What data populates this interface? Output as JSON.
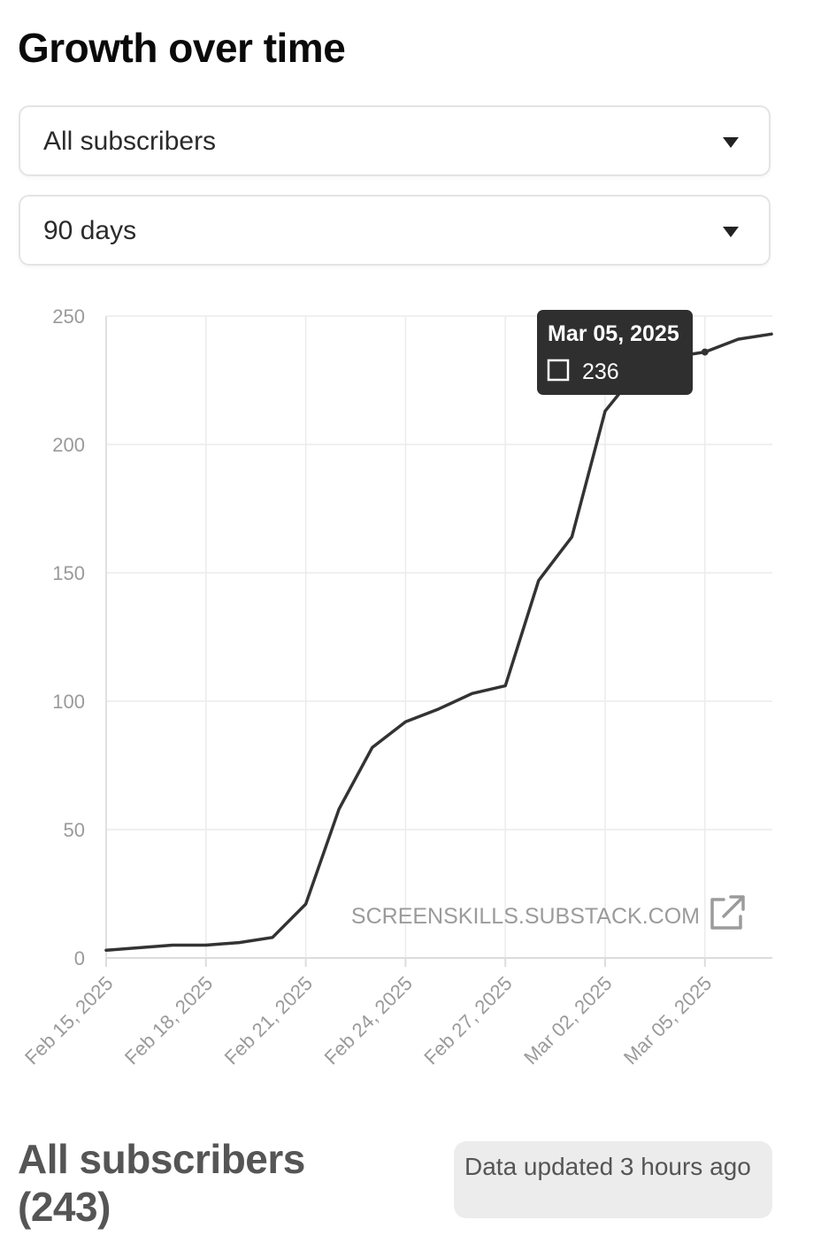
{
  "header": {
    "title": "Growth over time"
  },
  "filters": {
    "audience": "All subscribers",
    "range": "90 days"
  },
  "chart_data": {
    "type": "line",
    "x": [
      "2025-02-15",
      "2025-02-16",
      "2025-02-17",
      "2025-02-18",
      "2025-02-19",
      "2025-02-20",
      "2025-02-21",
      "2025-02-22",
      "2025-02-23",
      "2025-02-24",
      "2025-02-25",
      "2025-02-26",
      "2025-02-27",
      "2025-02-28",
      "2025-03-01",
      "2025-03-02",
      "2025-03-03",
      "2025-03-04",
      "2025-03-05",
      "2025-03-06",
      "2025-03-07"
    ],
    "series": [
      {
        "values": [
          3,
          4,
          5,
          5,
          6,
          8,
          21,
          58,
          82,
          92,
          97,
          103,
          106,
          147,
          164,
          213,
          229,
          234,
          236,
          241,
          243
        ]
      }
    ],
    "x_tick_labels": [
      "Feb 15, 2025",
      "Feb 18, 2025",
      "Feb 21, 2025",
      "Feb 24, 2025",
      "Feb 27, 2025",
      "Mar 02, 2025",
      "Mar 05, 2025"
    ],
    "x_tick_dates": [
      "2025-02-15",
      "2025-02-18",
      "2025-02-21",
      "2025-02-24",
      "2025-02-27",
      "2025-03-02",
      "2025-03-05"
    ],
    "y_ticks": [
      0,
      50,
      100,
      150,
      200,
      250
    ],
    "ylim": [
      0,
      250
    ],
    "grid": true,
    "line_color": "#333333",
    "tooltip": {
      "date_label": "Mar 05, 2025",
      "value": "236",
      "date": "2025-03-05"
    },
    "watermark": "SCREENSKILLS.SUBSTACK.COM"
  },
  "footer": {
    "summary_label": "All subscribers",
    "summary_count": "(243)",
    "status": "Data updated 3 hours ago"
  }
}
